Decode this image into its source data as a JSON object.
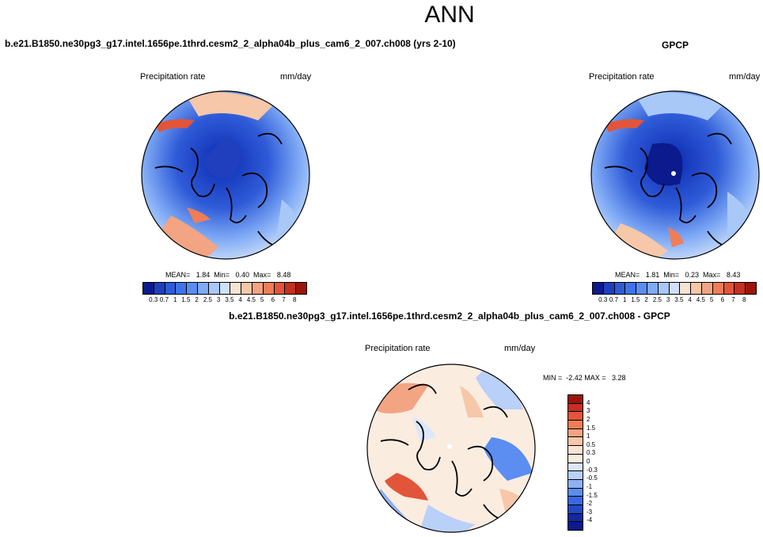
{
  "main_title": "ANN",
  "case_title": "b.e21.B1850.ne30pg3_g17.intel.1656pe.1thrd.cesm2_2_alpha04b_plus_cam6_2_007.ch008 (yrs 2-10)",
  "obs_title": "GPCP",
  "diff_title": "b.e21.B1850.ne30pg3_g17.intel.1656pe.1thrd.cesm2_2_alpha04b_plus_cam6_2_007.ch008 - GPCP",
  "panels": {
    "model": {
      "left_label": "Precipitation rate",
      "right_label": "mm/day",
      "stats": "MEAN=   1.84  Min=   0.40  Max=   8.48"
    },
    "obs": {
      "left_label": "Precipitation rate",
      "right_label": "mm/day",
      "stats": "MEAN=   1.81  Min=   0.23  Max=   8.43"
    },
    "diff": {
      "left_label": "Precipitation rate",
      "right_label": "mm/day",
      "stats": "MIN =  -2.42 MAX =   3.28"
    }
  },
  "colorbar_abs": {
    "ticks": [
      "0.3",
      "0.7",
      "1",
      "1.5",
      "2",
      "2.5",
      "3",
      "3.5",
      "4",
      "4.5",
      "5",
      "6",
      "7",
      "8"
    ],
    "colors": [
      "#0b1a8c",
      "#1f3fbf",
      "#2f5bd8",
      "#3f73e8",
      "#5b8ef0",
      "#7faaf5",
      "#a8c8f8",
      "#cfe0fa",
      "#f7e3d2",
      "#f6c7a8",
      "#f3a482",
      "#ef7d58",
      "#e2553a",
      "#c5301f",
      "#9c1508"
    ]
  },
  "colorbar_diff": {
    "ticks": [
      "4",
      "3",
      "2",
      "1.5",
      "1",
      "0.5",
      "0.3",
      "0",
      "-0.3",
      "-0.5",
      "-1",
      "-1.5",
      "-2",
      "-3",
      "-4"
    ],
    "colors": [
      "#9c1508",
      "#c5301f",
      "#e2553a",
      "#ef7d58",
      "#f3a482",
      "#f6c7a8",
      "#f7e3d2",
      "#fbece0",
      "#dce8fb",
      "#b9d0f8",
      "#8fb1f3",
      "#5b8ef0",
      "#3a68e0",
      "#2447c4",
      "#14289f",
      "#0b1a8c"
    ]
  }
}
